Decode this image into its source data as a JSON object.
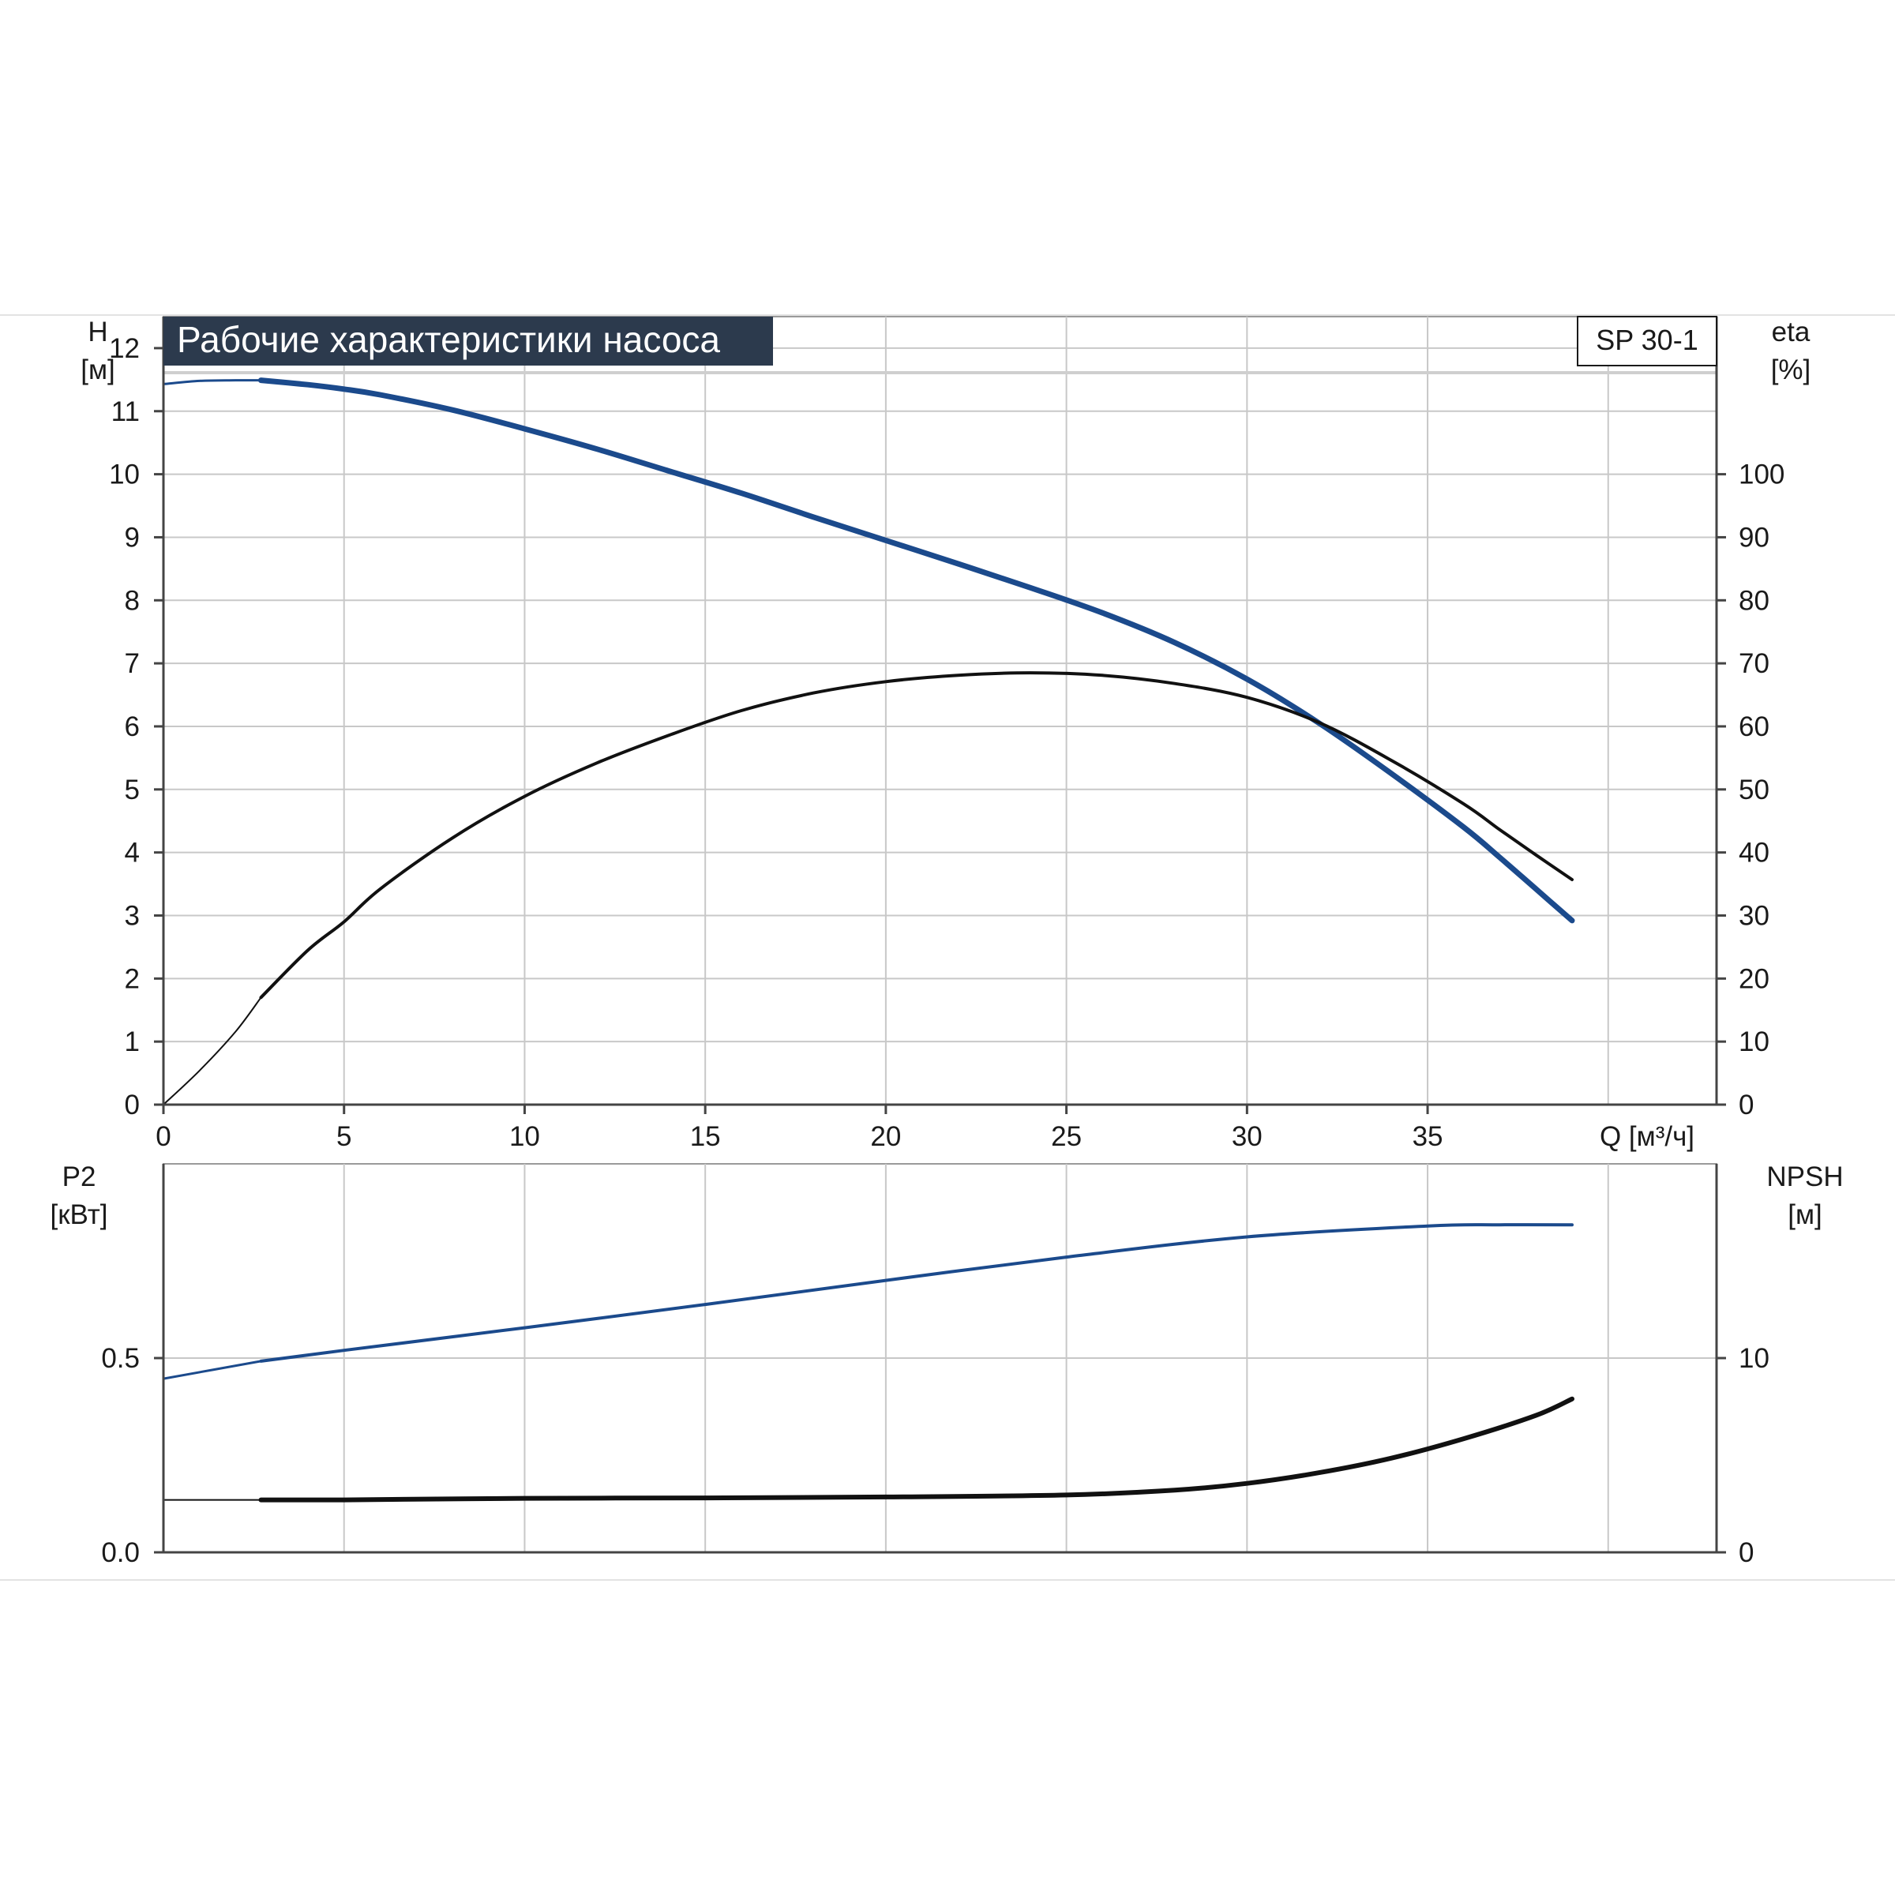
{
  "title": "Рабочие характеристики насоса",
  "model": "SP 30-1",
  "colors": {
    "head": "#1b4a8c",
    "efficiency": "#111111",
    "power": "#1b4a8c",
    "npsh": "#111111",
    "grid": "#c8c8c8",
    "title_bg": "#2c3a4d"
  },
  "chart_data": [
    {
      "type": "line",
      "title": "Рабочие характеристики насоса",
      "xlabel": "Q [м³/ч]",
      "ylabel": "H\n[м]",
      "y2label": "eta\n[%]",
      "xlim": [
        0,
        43
      ],
      "ylim": [
        0,
        12.5
      ],
      "y2lim": [
        0,
        125
      ],
      "grid": true,
      "x_ticks": [
        0,
        5,
        10,
        15,
        20,
        25,
        30,
        35
      ],
      "y_ticks": [
        0,
        1,
        2,
        3,
        4,
        5,
        6,
        7,
        8,
        9,
        10,
        11,
        12
      ],
      "y2_ticks": [
        0,
        10,
        20,
        30,
        40,
        50,
        60,
        70,
        80,
        90,
        100
      ],
      "series": [
        {
          "name": "H",
          "axis": "left",
          "x": [
            0,
            1,
            2,
            2.7,
            4,
            5,
            6,
            8,
            10,
            12,
            14,
            16,
            18,
            20,
            22,
            24,
            26,
            28,
            30,
            32,
            34,
            36,
            37,
            38,
            39
          ],
          "y": [
            11.43,
            11.48,
            11.49,
            11.49,
            11.42,
            11.35,
            11.26,
            11.02,
            10.72,
            10.4,
            10.05,
            9.7,
            9.32,
            8.95,
            8.58,
            8.2,
            7.8,
            7.33,
            6.75,
            6.05,
            5.25,
            4.4,
            3.92,
            3.42,
            2.92
          ]
        },
        {
          "name": "eta",
          "axis": "right",
          "x": [
            0,
            1,
            2,
            2.7,
            4,
            5,
            6,
            8,
            10,
            12,
            14,
            16,
            18,
            20,
            22,
            24,
            26,
            28,
            30,
            32,
            34,
            36,
            37,
            38,
            39
          ],
          "y": [
            0,
            5.4,
            11.6,
            17,
            24.5,
            29,
            34.2,
            42.3,
            48.9,
            54.2,
            58.6,
            62.5,
            65.3,
            67.1,
            68.1,
            68.5,
            68.1,
            66.8,
            64.6,
            60.6,
            54.6,
            47.7,
            43.6,
            39.6,
            35.7
          ]
        }
      ]
    },
    {
      "type": "line",
      "xlabel": "",
      "ylabel": "P2\n[кВт]",
      "y2label": "NPSH\n[м]",
      "xlim": [
        0,
        43
      ],
      "ylim": [
        0,
        1.0
      ],
      "y2lim": [
        0,
        20
      ],
      "grid": true,
      "x_ticks": [
        0,
        5,
        10,
        15,
        20,
        25,
        30,
        35
      ],
      "y_ticks": [
        0.0,
        0.5
      ],
      "y2_ticks": [
        0,
        10
      ],
      "series": [
        {
          "name": "P2",
          "axis": "left",
          "x": [
            0,
            2.7,
            5,
            10,
            15,
            20,
            25,
            30,
            35,
            37,
            39
          ],
          "y": [
            0.447,
            0.492,
            0.52,
            0.578,
            0.638,
            0.7,
            0.76,
            0.812,
            0.84,
            0.843,
            0.843
          ]
        },
        {
          "name": "NPSH",
          "axis": "right",
          "x": [
            0,
            2.7,
            5,
            10,
            15,
            20,
            25,
            28,
            30,
            32,
            34,
            36,
            38,
            39
          ],
          "y": [
            2.7,
            2.7,
            2.7,
            2.78,
            2.8,
            2.85,
            2.95,
            3.2,
            3.55,
            4.1,
            4.85,
            5.85,
            7.05,
            7.9
          ]
        }
      ]
    }
  ]
}
